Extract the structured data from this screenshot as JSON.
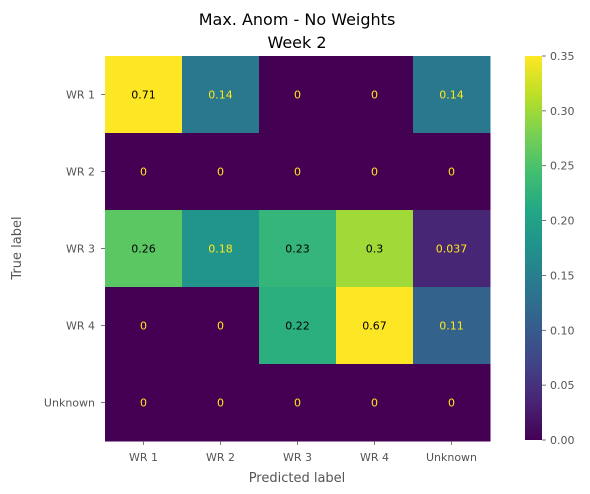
{
  "chart_data": {
    "type": "heatmap",
    "title": [
      "Max. Anom - No Weights",
      "Week 2"
    ],
    "xlabel": "Predicted label",
    "ylabel": "True label",
    "x_categories": [
      "WR 1",
      "WR 2",
      "WR 3",
      "WR 4",
      "Unknown"
    ],
    "y_categories": [
      "WR 1",
      "WR 2",
      "WR 3",
      "WR 4",
      "Unknown"
    ],
    "values": [
      [
        0.71,
        0.14,
        0,
        0,
        0.14
      ],
      [
        0,
        0,
        0,
        0,
        0
      ],
      [
        0.26,
        0.18,
        0.23,
        0.3,
        0.037
      ],
      [
        0,
        0,
        0.22,
        0.67,
        0.11
      ],
      [
        0,
        0,
        0,
        0,
        0
      ]
    ],
    "value_labels": [
      [
        "0.71",
        "0.14",
        "0",
        "0",
        "0.14"
      ],
      [
        "0",
        "0",
        "0",
        "0",
        "0"
      ],
      [
        "0.26",
        "0.18",
        "0.23",
        "0.3",
        "0.037"
      ],
      [
        "0",
        "0",
        "0.22",
        "0.67",
        "0.11"
      ],
      [
        "0",
        "0",
        "0",
        "0",
        "0"
      ]
    ],
    "colormap": "viridis",
    "clim": [
      0,
      0.35
    ],
    "colorbar_ticks": [
      0.0,
      0.05,
      0.1,
      0.15,
      0.2,
      0.25,
      0.3,
      0.35
    ],
    "colorbar_tick_labels": [
      "0.00",
      "0.05",
      "0.10",
      "0.15",
      "0.20",
      "0.25",
      "0.30",
      "0.35"
    ],
    "cell_text_color": "#ffe81a",
    "grid": false
  }
}
